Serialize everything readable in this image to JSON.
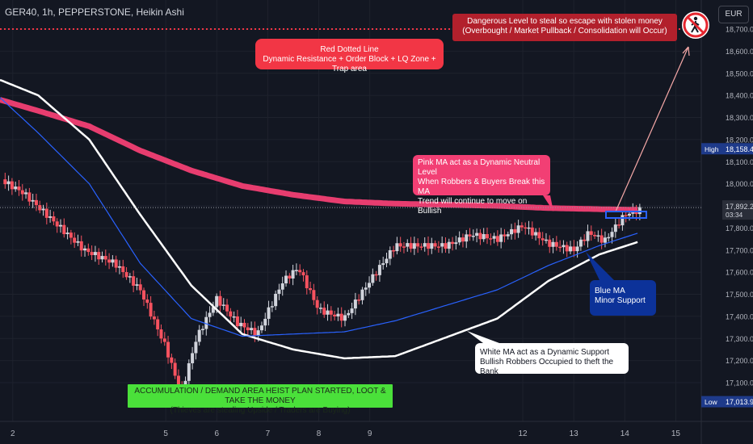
{
  "header": {
    "title": "GER40, 1h, PEPPERSTONE, Heikin Ashi",
    "currency": "EUR"
  },
  "notes": {
    "danger": [
      "Dangerous Level to steal so escape with stolen money",
      "(Overbought / Market Pullback / Consolidation will Occur)"
    ],
    "red_line": [
      "Red Dotted Line",
      "Dynamic Resistance + Order Block + LQ Zone + Trap area"
    ],
    "pink_ma": [
      "Pink MA act as a Dynamic Neutral Level",
      "When Robbers & Buyers Break this MA",
      "Trend will continue to move on Bullish"
    ],
    "blue_ma": [
      "Blue MA",
      "Minor Support"
    ],
    "white_ma": [
      "White MA act as a Dynamic Support",
      "Bullish Robbers Occupied to theft the Bank"
    ],
    "accumulation": [
      "ACCUMULATION / DEMAND AREA HEIST PLAN STARTED, LOOT & TAKE THE MONEY",
      "(Thieves are stealing Upside / Traders are Buying)"
    ]
  },
  "icon": "no-pedestrian-icon",
  "chart_data": {
    "type": "candlestick",
    "chart_style": "Heikin Ashi",
    "symbol": "GER40",
    "interval": "1h",
    "ylim": [
      17000,
      18750
    ],
    "y_ticks": [
      17100,
      17200,
      17300,
      17400,
      17500,
      17600,
      17700,
      17800,
      17900,
      18000,
      18100,
      18200,
      18300,
      18400,
      18500,
      18600,
      18700
    ],
    "y_tick_labels": [
      "17,100.0",
      "17,200.0",
      "17,300.0",
      "17,400.0",
      "17,500.0",
      "17,600.0",
      "17,700.0",
      "17,800.0",
      "17,900.0",
      "18,000.0",
      "18,100.0",
      "18,200.0",
      "18,300.0",
      "18,400.0",
      "18,500.0",
      "18,600.0",
      "18,700.0"
    ],
    "xlim": [
      1.75,
      15.5
    ],
    "x_ticks": [
      2,
      5,
      6,
      7,
      8,
      9,
      12,
      13,
      14,
      15
    ],
    "x_tick_labels": [
      "2",
      "5",
      "6",
      "7",
      "8",
      "9",
      "12",
      "13",
      "14",
      "15"
    ],
    "resistance_level": 18700,
    "current_price": {
      "label": "17,892.2",
      "countdown": "03:34",
      "value": 17892.2
    },
    "high": {
      "label": "High",
      "value": 18158.4,
      "value_label": "18,158.4"
    },
    "low": {
      "label": "Low",
      "value": 17013.9,
      "value_label": "17,013.9"
    },
    "colors": {
      "up": "#d1d4dc",
      "down": "#f7525f",
      "pink_ma": "#f23f74",
      "blue_ma": "#2962ff",
      "white_ma": "#ffffff",
      "resistance": "#f23645"
    },
    "series": [
      {
        "name": "Pink MA",
        "x": [
          1.75,
          2.5,
          3.5,
          4.5,
          5.5,
          6.5,
          7.5,
          8.5,
          9.5,
          11.5,
          12.5,
          13.5,
          14.3
        ],
        "y": [
          18380,
          18330,
          18260,
          18150,
          18060,
          17990,
          17950,
          17920,
          17910,
          17900,
          17890,
          17885,
          17882
        ]
      },
      {
        "name": "White MA",
        "x": [
          1.75,
          2.5,
          3.5,
          4.5,
          5.5,
          6.5,
          7.5,
          8.5,
          9.5,
          11.5,
          12.5,
          13.5,
          14.3
        ],
        "y": [
          18470,
          18400,
          18200,
          17860,
          17540,
          17320,
          17250,
          17210,
          17220,
          17390,
          17560,
          17680,
          17740
        ]
      },
      {
        "name": "Blue MA",
        "x": [
          1.75,
          2.5,
          3.5,
          4.5,
          5.5,
          6.5,
          7.5,
          8.5,
          9.5,
          11.5,
          12.5,
          13.5,
          14.3
        ],
        "y": [
          18390,
          18230,
          18000,
          17640,
          17390,
          17310,
          17320,
          17330,
          17380,
          17520,
          17630,
          17720,
          17780
        ]
      }
    ],
    "price_path": {
      "x": [
        1.75,
        2.2,
        2.8,
        3.4,
        4.0,
        4.5,
        5.0,
        5.3,
        5.6,
        6.0,
        6.4,
        6.8,
        7.0,
        7.3,
        7.6,
        8.0,
        8.5,
        9.0,
        9.5,
        10.5,
        11.0,
        11.5,
        12.0,
        12.5,
        13.0,
        13.3,
        13.6,
        14.0,
        14.4
      ],
      "y": [
        18020,
        17960,
        17830,
        17700,
        17640,
        17520,
        17260,
        17050,
        17300,
        17480,
        17370,
        17320,
        17420,
        17560,
        17620,
        17430,
        17390,
        17560,
        17720,
        17720,
        17770,
        17750,
        17810,
        17730,
        17700,
        17780,
        17740,
        17860,
        17890
      ]
    }
  }
}
